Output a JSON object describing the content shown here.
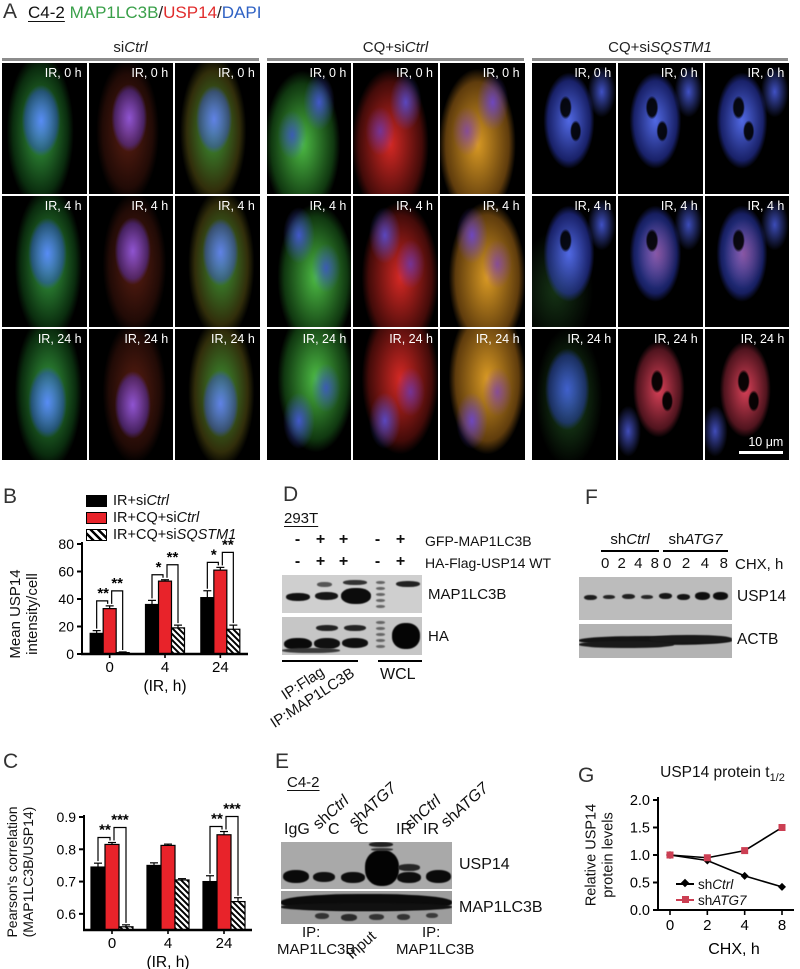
{
  "colors": {
    "stain_green": "#3aa04a",
    "stain_red": "#e12c2c",
    "stain_blue": "#2f62c4",
    "bar_black": "#000000",
    "bar_red": "#e8232a",
    "line_red": "#cc3f53"
  },
  "panels": {
    "A": "A",
    "B": "B",
    "C": "C",
    "D": "D",
    "E": "E",
    "F": "F",
    "G": "G"
  },
  "panelA": {
    "cell_line": "C4-2",
    "stain_green": "MAP1LC3B",
    "slash1": "/",
    "stain_red": "USP14",
    "slash2": "/",
    "stain_blue": "DAPI",
    "groups": [
      {
        "pre": "si",
        "it": "Ctrl"
      },
      {
        "pre": "CQ+si",
        "it": "Ctrl"
      },
      {
        "pre": "CQ+si",
        "it": "SQSTM1"
      }
    ],
    "row_labels": [
      "IR, 0 h",
      "IR, 4 h",
      "IR, 24 h"
    ],
    "scale_bar": "10 μm"
  },
  "panelB": {
    "legend": [
      {
        "pre": "IR+si",
        "it": "Ctrl",
        "swatch": "black"
      },
      {
        "pre": "IR+CQ+si",
        "it": "Ctrl",
        "swatch": "red"
      },
      {
        "pre": "IR+CQ+si",
        "it": "SQSTM1",
        "swatch": "hatch"
      }
    ],
    "ylabel_line1": "Mean USP14",
    "ylabel_line2": "intensity/cell"
  },
  "panelC": {
    "ylabel_line1": "Pearson's correlation",
    "ylabel_line2": "(MAP1LC3B/USP14)"
  },
  "panelD": {
    "cell_line": "293T",
    "row1": [
      "-",
      "+",
      "+",
      "-",
      "+"
    ],
    "row2": [
      "-",
      "+",
      "+",
      "-",
      "+"
    ],
    "row1_label": "GFP-MAP1LC3B",
    "row2_label": "HA-Flag-USP14 WT",
    "blot1_label": "MAP1LC3B",
    "blot2_label": "HA",
    "ip1": "IP:Flag",
    "ip2": "IP:MAP1LC3B",
    "wcl": "WCL"
  },
  "panelE": {
    "cell_line": "C4-2",
    "diag": [
      {
        "pre": "sh",
        "it": "Ctrl"
      },
      {
        "pre": "sh",
        "it": "ATG7"
      },
      {
        "pre": "sh",
        "it": "Ctrl"
      },
      {
        "pre": "sh",
        "it": "ATG7"
      }
    ],
    "lanes": [
      "IgG",
      "C",
      "C",
      "IR",
      "IR"
    ],
    "blot1_label": "USP14",
    "blot2_label": "MAP1LC3B",
    "ip_left_1": "IP:",
    "ip_left_2": "MAP1LC3B",
    "input": "Input",
    "ip_right_1": "IP:",
    "ip_right_2": "MAP1LC3B"
  },
  "panelF": {
    "groups": [
      {
        "pre": "sh",
        "it": "Ctrl"
      },
      {
        "pre": "sh",
        "it": "ATG7"
      }
    ],
    "times": [
      "0",
      "2",
      "4",
      "8"
    ],
    "time_unit": "CHX, h",
    "blot1_label": "USP14",
    "blot2_label": "ACTB"
  },
  "panelG": {
    "title_main": "USP14 protein t",
    "title_sub": "1/2",
    "ylabel_line1": "Relative USP14",
    "ylabel_line2": "protein levels",
    "legend": [
      {
        "pre": "sh",
        "it": "Ctrl",
        "color": "#000000",
        "marker": "diamond"
      },
      {
        "pre": "sh",
        "it": "ATG7",
        "color": "#cc3f53",
        "marker": "square"
      }
    ]
  },
  "chart_data": [
    {
      "id": "B",
      "type": "bar",
      "categories": [
        "0",
        "4",
        "24"
      ],
      "xlabel": "(IR, h)",
      "ylabel": "Mean USP14 intensity/cell",
      "ylim": [
        0,
        80
      ],
      "yticks": [
        0,
        20,
        40,
        60,
        80
      ],
      "series": [
        {
          "name": "IR+siCtrl",
          "color": "#000000",
          "fill": "solid",
          "values": [
            15,
            36,
            41
          ],
          "errors": [
            2,
            3,
            5
          ]
        },
        {
          "name": "IR+CQ+siCtrl",
          "color": "#e8232a",
          "fill": "solid",
          "values": [
            33,
            53,
            61
          ],
          "errors": [
            2,
            1,
            2
          ]
        },
        {
          "name": "IR+CQ+siSQSTM1",
          "color": "#000000",
          "fill": "hatch",
          "values": [
            1,
            19,
            18
          ],
          "errors": [
            0.5,
            2,
            3
          ]
        }
      ],
      "significance": [
        {
          "group": 0,
          "inner": "**",
          "outer": "**"
        },
        {
          "group": 1,
          "inner": "*",
          "outer": "**"
        },
        {
          "group": 2,
          "inner": "*",
          "outer": "**"
        }
      ]
    },
    {
      "id": "C",
      "type": "bar",
      "categories": [
        "0",
        "4",
        "24"
      ],
      "xlabel": "(IR, h)",
      "ylabel": "Pearson's correlation (MAP1LC3B/USP14)",
      "ylim": [
        0.55,
        0.9
      ],
      "yticks": [
        0.6,
        0.7,
        0.8,
        0.9
      ],
      "series": [
        {
          "name": "IR+siCtrl",
          "color": "#000000",
          "fill": "solid",
          "values": [
            0.745,
            0.75,
            0.7
          ],
          "errors": [
            0.012,
            0.008,
            0.018
          ]
        },
        {
          "name": "IR+CQ+siCtrl",
          "color": "#e8232a",
          "fill": "solid",
          "values": [
            0.815,
            0.812,
            0.845
          ],
          "errors": [
            0.006,
            0.004,
            0.01
          ]
        },
        {
          "name": "IR+CQ+siSQSTM1",
          "color": "#000000",
          "fill": "hatch",
          "values": [
            0.56,
            0.705,
            0.638
          ],
          "errors": [
            0.006,
            0.004,
            0.012
          ]
        }
      ],
      "significance": [
        {
          "group": 0,
          "inner": "**",
          "outer": "***"
        },
        {
          "group": 2,
          "inner": "**",
          "outer": "***"
        }
      ]
    },
    {
      "id": "G",
      "type": "line",
      "title": "USP14 protein t1/2",
      "categories": [
        "0",
        "2",
        "4",
        "8"
      ],
      "xlabel": "CHX, h",
      "ylabel": "Relative USP14 protein levels",
      "ylim": [
        0,
        2
      ],
      "yticks": [
        0,
        0.5,
        1,
        1.5,
        2
      ],
      "series": [
        {
          "name": "shCtrl",
          "color": "#000000",
          "marker": "diamond",
          "values": [
            1.0,
            0.9,
            0.62,
            0.42
          ]
        },
        {
          "name": "shATG7",
          "color": "#cc3f53",
          "marker": "square",
          "values": [
            1.0,
            0.95,
            1.08,
            1.5
          ]
        }
      ]
    }
  ]
}
